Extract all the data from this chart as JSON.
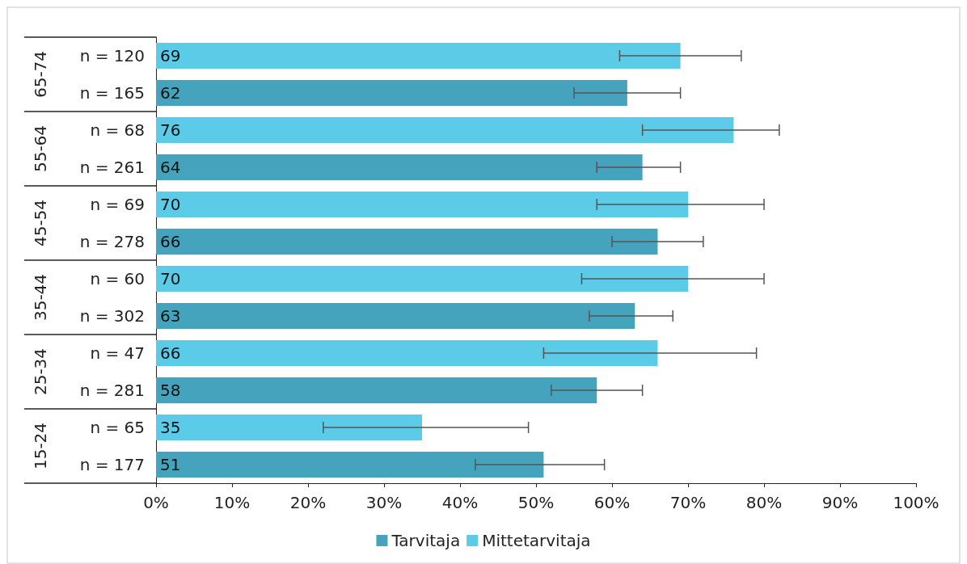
{
  "chart_data": {
    "type": "bar",
    "orientation": "horizontal",
    "categories": [
      "n = 120",
      "n = 165",
      "n = 68",
      "n = 261",
      "n = 69",
      "n = 278",
      "n = 60",
      "n = 302",
      "n = 47",
      "n = 281",
      "n = 65",
      "n = 177"
    ],
    "annotations": [
      "65-74",
      "55-64",
      "45-54",
      "35-44",
      "25-34",
      "15-24"
    ],
    "series": [
      {
        "name": "Tarvitaja",
        "color": "#46a3bd",
        "values": [
          null,
          62,
          null,
          64,
          null,
          66,
          null,
          63,
          null,
          58,
          null,
          51
        ],
        "errors": [
          null,
          [
            55,
            69
          ],
          null,
          [
            58,
            69
          ],
          null,
          [
            60,
            72
          ],
          null,
          [
            57,
            68
          ],
          null,
          [
            52,
            64
          ],
          null,
          [
            42,
            59
          ]
        ]
      },
      {
        "name": "Mittetarvitaja",
        "color": "#5bcbe8",
        "values": [
          69,
          null,
          76,
          null,
          70,
          null,
          70,
          null,
          66,
          null,
          35,
          null
        ],
        "errors": [
          [
            61,
            77
          ],
          null,
          [
            64,
            82
          ],
          null,
          [
            58,
            80
          ],
          null,
          [
            56,
            80
          ],
          null,
          [
            51,
            79
          ],
          null,
          [
            22,
            49
          ],
          null
        ]
      }
    ],
    "xlim": [
      0,
      100
    ],
    "xticks": [
      {
        "value": 0,
        "label": "0%"
      },
      {
        "value": 10,
        "label": "10%"
      },
      {
        "value": 20,
        "label": "20%"
      },
      {
        "value": 30,
        "label": "30%"
      },
      {
        "value": 40,
        "label": "40%"
      },
      {
        "value": 50,
        "label": "50%"
      },
      {
        "value": 60,
        "label": "60%"
      },
      {
        "value": 70,
        "label": "70%"
      },
      {
        "value": 80,
        "label": "80%"
      },
      {
        "value": 90,
        "label": "90%"
      },
      {
        "value": 100,
        "label": "100%"
      }
    ],
    "data_labels": true,
    "legend": "bottom",
    "grid": false
  }
}
